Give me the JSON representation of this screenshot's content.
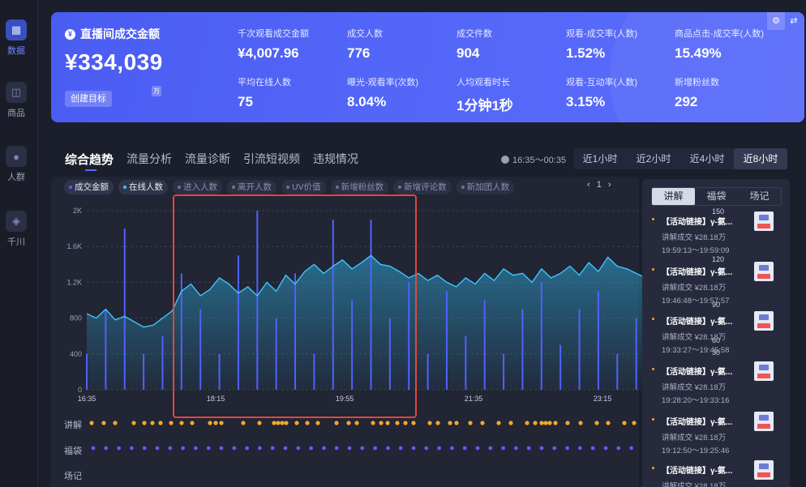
{
  "sidebar": {
    "items": [
      {
        "label": "数据",
        "icon": "data-icon",
        "active": true
      },
      {
        "label": "商品",
        "icon": "product-icon",
        "active": false
      },
      {
        "label": "人群",
        "icon": "crowd-icon",
        "active": false
      },
      {
        "label": "千川",
        "icon": "qianchuan-icon",
        "active": false
      }
    ]
  },
  "banner": {
    "title": "直播间成交金额",
    "amount": "¥334,039",
    "unit": "万",
    "create_goal": "创建目标",
    "metrics": [
      {
        "label": "千次观看成交金额",
        "value": "¥4,007.96"
      },
      {
        "label": "成交人数",
        "value": "776"
      },
      {
        "label": "成交件数",
        "value": "904"
      },
      {
        "label": "观看-成交率(人数)",
        "value": "1.52%"
      },
      {
        "label": "商品点击-成交率(人数)",
        "value": "15.49%"
      },
      {
        "label": "平均在线人数",
        "value": "75"
      },
      {
        "label": "曝光-观看率(次数)",
        "value": "8.04%"
      },
      {
        "label": "人均观看时长",
        "value": "1分钟1秒"
      },
      {
        "label": "观看-互动率(人数)",
        "value": "3.15%"
      },
      {
        "label": "新增粉丝数",
        "value": "292"
      }
    ]
  },
  "tabs": [
    "综合趋势",
    "流量分析",
    "流量诊断",
    "引流短视频",
    "违规情况"
  ],
  "time_range": "16:35～00:35",
  "ranges": [
    {
      "label": "近1小时",
      "active": false
    },
    {
      "label": "近2小时",
      "active": false
    },
    {
      "label": "近4小时",
      "active": false
    },
    {
      "label": "近8小时",
      "active": true
    }
  ],
  "chips": [
    {
      "label": "成交金额",
      "on": true
    },
    {
      "label": "在线人数",
      "on": true
    },
    {
      "label": "进入人数",
      "on": false
    },
    {
      "label": "离开人数",
      "on": false
    },
    {
      "label": "UV价值",
      "on": false
    },
    {
      "label": "新增粉丝数",
      "on": false
    },
    {
      "label": "新增评论数",
      "on": false
    },
    {
      "label": "新加团人数",
      "on": false
    }
  ],
  "pager": "1",
  "row_labels": [
    "讲解",
    "福袋",
    "场记"
  ],
  "right_panel": {
    "tabs": [
      {
        "label": "讲解",
        "active": true
      },
      {
        "label": "福袋",
        "active": false
      },
      {
        "label": "场记",
        "active": false
      }
    ],
    "scale_labels": [
      "150",
      "120",
      "90",
      "60",
      "30"
    ],
    "items": [
      {
        "title": "【活动链接】γ-氨...",
        "sales": "讲解成交 ¥28.18万",
        "time": "19:59:13～19:59:09"
      },
      {
        "title": "【活动链接】γ-氨...",
        "sales": "讲解成交 ¥28.18万",
        "time": "19:46:48～19:57:57"
      },
      {
        "title": "【活动链接】γ-氨...",
        "sales": "讲解成交 ¥28.18万",
        "time": "19:33:27～19:45:58"
      },
      {
        "title": "【活动链接】γ-氨...",
        "sales": "讲解成交 ¥28.18万",
        "time": "19:28:20～19:33:16"
      },
      {
        "title": "【活动链接】γ-氨...",
        "sales": "讲解成交 ¥28.18万",
        "time": "19:12:50～19:25:46"
      },
      {
        "title": "【活动链接】γ-氨...",
        "sales": "讲解成交 ¥28.18万",
        "time": ""
      }
    ]
  },
  "colors": {
    "accent": "#4f62ff",
    "online_line": "#3ec5ff",
    "gift_dot": "#7a4dff",
    "explain_dot": "#f4a62a",
    "highlight_box": "#e0483b"
  },
  "chart_data": {
    "type": "line",
    "x_ticks": [
      "16:35",
      "18:15",
      "19:55",
      "21:35",
      "23:15"
    ],
    "y_ticks": [
      "0",
      "400",
      "800",
      "1.2K",
      "1.6K",
      "2K"
    ],
    "ylim": [
      0,
      2000
    ],
    "series": [
      {
        "name": "在线人数",
        "values": [
          850,
          800,
          900,
          780,
          820,
          760,
          700,
          720,
          800,
          880,
          1100,
          1180,
          1050,
          1120,
          1250,
          1180,
          1080,
          1150,
          1050,
          1200,
          1100,
          1280,
          1180,
          1320,
          1400,
          1300,
          1380,
          1450,
          1350,
          1420,
          1500,
          1400,
          1380,
          1320,
          1250,
          1300,
          1220,
          1280,
          1200,
          1150,
          1250,
          1180,
          1300,
          1220,
          1350,
          1280,
          1300,
          1200,
          1350,
          1250,
          1300,
          1380,
          1280,
          1420,
          1320,
          1480,
          1380,
          1350,
          1300,
          1250,
          1200
        ]
      },
      {
        "name": "成交金额",
        "values": [
          400,
          0,
          900,
          0,
          1800,
          0,
          400,
          0,
          600,
          0,
          1300,
          0,
          900,
          0,
          400,
          0,
          1500,
          0,
          2000,
          0,
          800,
          0,
          1300,
          0,
          400,
          0,
          1900,
          0,
          1000,
          0,
          1900,
          0,
          800,
          0,
          1200,
          0,
          400,
          0,
          1100,
          0,
          600,
          0,
          1000,
          0,
          400,
          0,
          900,
          0,
          1200,
          0,
          500,
          0,
          900,
          0,
          1100,
          0,
          400,
          0,
          800,
          0,
          400
        ]
      }
    ]
  }
}
